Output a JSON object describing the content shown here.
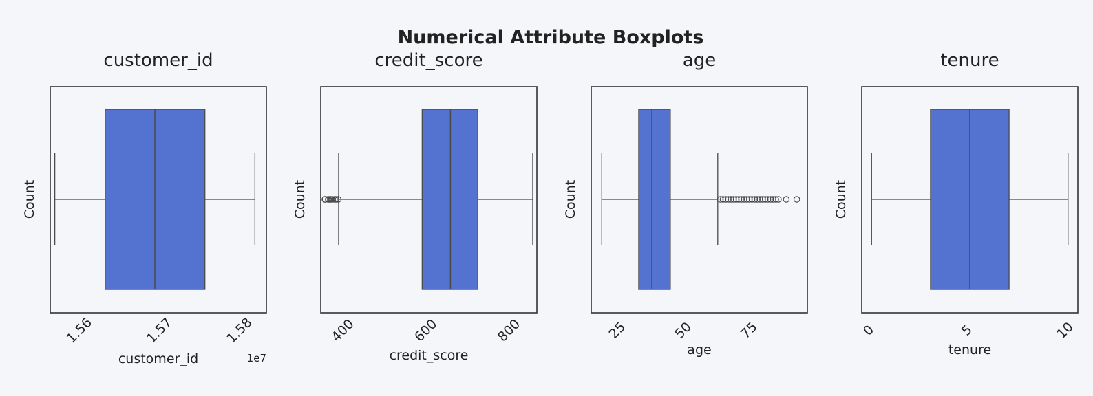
{
  "chart_data": {
    "type": "boxplot",
    "title": "Numerical Attribute Boxplots",
    "box_color": "#5473d1",
    "panels": [
      {
        "title": "customer_id",
        "xlabel": "customer_id",
        "ylabel": "Count",
        "xlim": [
          15560000,
          15830000
        ],
        "ticks": [
          15600000,
          15700000,
          15800000
        ],
        "tick_labels": [
          "1.56",
          "1.57",
          "1.58"
        ],
        "offset_label": "1e7",
        "whisker_low": 15565701,
        "q1": 15628528,
        "median": 15690738,
        "q3": 15753233,
        "whisker_high": 15815690,
        "outliers": []
      },
      {
        "title": "credit_score",
        "xlabel": "credit_score",
        "ylabel": "Count",
        "xlim": [
          340,
          860
        ],
        "ticks": [
          400,
          600,
          800
        ],
        "tick_labels": [
          "400",
          "600",
          "800"
        ],
        "offset_label": "",
        "whisker_low": 383,
        "q1": 584,
        "median": 652,
        "q3": 718,
        "whisker_high": 850,
        "outliers": [
          350,
          351,
          358,
          359,
          363,
          365,
          367,
          373,
          376,
          382
        ]
      },
      {
        "title": "age",
        "xlabel": "age",
        "ylabel": "Count",
        "xlim": [
          14,
          96
        ],
        "ticks": [
          25,
          50,
          75
        ],
        "tick_labels": [
          "25",
          "50",
          "75"
        ],
        "offset_label": "",
        "whisker_low": 18,
        "q1": 32,
        "median": 37,
        "q3": 44,
        "whisker_high": 62,
        "outliers": [
          63,
          64,
          65,
          66,
          67,
          68,
          69,
          70,
          71,
          72,
          73,
          74,
          75,
          76,
          77,
          78,
          79,
          80,
          81,
          82,
          83,
          84,
          85,
          88,
          92
        ]
      },
      {
        "title": "tenure",
        "xlabel": "tenure",
        "ylabel": "Count",
        "xlim": [
          -0.5,
          10.5
        ],
        "ticks": [
          0,
          5,
          10
        ],
        "tick_labels": [
          "0",
          "5",
          "10"
        ],
        "offset_label": "",
        "whisker_low": 0,
        "q1": 3,
        "median": 5,
        "q3": 7,
        "whisker_high": 10,
        "outliers": []
      }
    ]
  }
}
